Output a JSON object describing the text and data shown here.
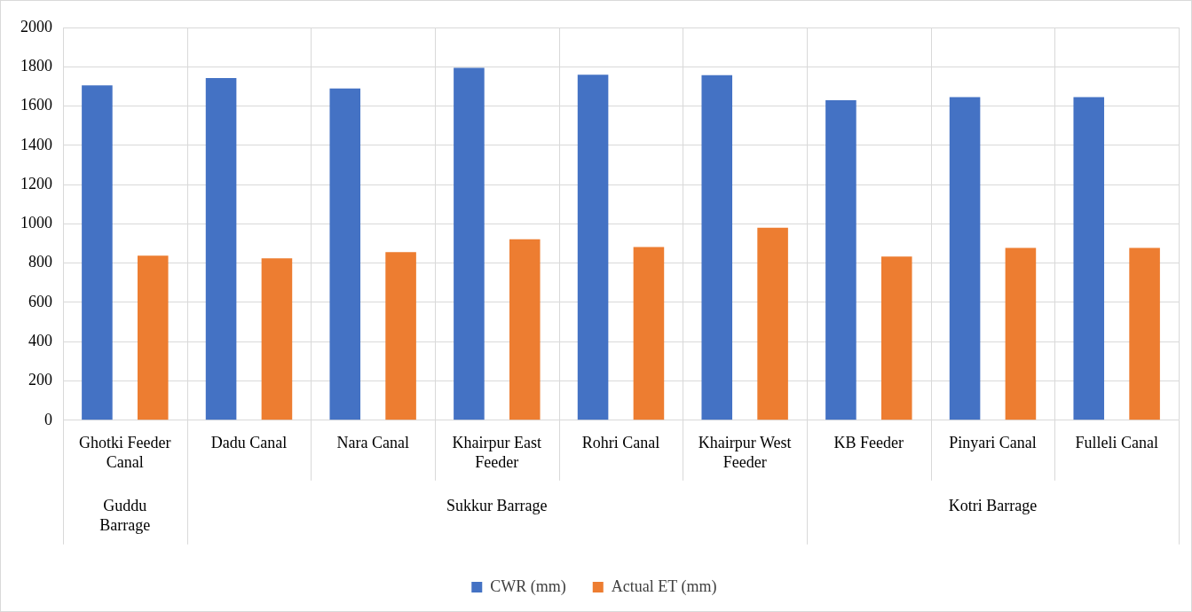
{
  "chart_data": {
    "type": "bar",
    "categories": [
      "Ghotki Feeder Canal",
      "Dadu Canal",
      "Nara Canal",
      "Khairpur East Feeder",
      "Rohri Canal",
      "Khairpur West Feeder",
      "KB Feeder",
      "Pinyari Canal",
      "Fulleli Canal"
    ],
    "series": [
      {
        "name": "CWR (mm)",
        "color": "#4472c4",
        "values": [
          1705,
          1743,
          1690,
          1795,
          1760,
          1757,
          1630,
          1645,
          1645
        ]
      },
      {
        "name": "Actual ET (mm)",
        "color": "#ed7d31",
        "values": [
          838,
          825,
          856,
          922,
          882,
          980,
          833,
          878,
          878
        ]
      }
    ],
    "ylim": [
      0,
      2000
    ],
    "yticks": [
      0,
      200,
      400,
      600,
      800,
      1000,
      1200,
      1400,
      1600,
      1800,
      2000
    ],
    "annotations": [
      "Guddu Barrage",
      "Sukkur Barrage",
      "Kotri Barrage"
    ],
    "grid": true,
    "legend": "bottom"
  }
}
